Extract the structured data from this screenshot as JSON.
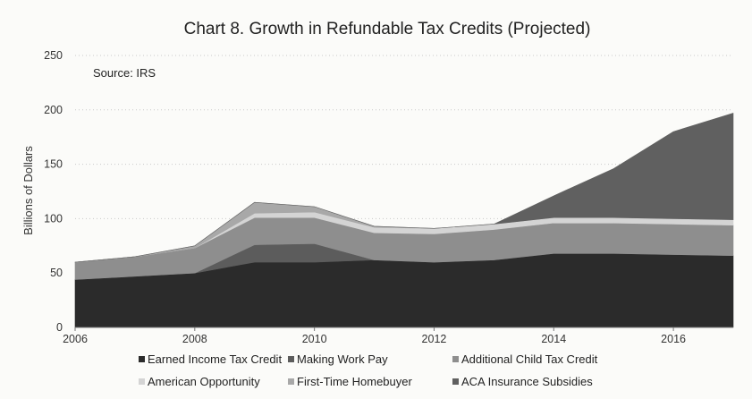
{
  "chart_data": {
    "type": "area",
    "stacked": true,
    "title": "Chart 8. Growth in Refundable Tax Credits (Projected)",
    "annotation": "Source: IRS",
    "xlabel": "",
    "ylabel": "Billions of Dollars",
    "xlim": [
      2006,
      2017
    ],
    "ylim": [
      0,
      250
    ],
    "x": [
      2006,
      2007,
      2008,
      2009,
      2010,
      2011,
      2012,
      2013,
      2014,
      2015,
      2016,
      2017
    ],
    "x_ticks": [
      2006,
      2008,
      2010,
      2012,
      2014,
      2016
    ],
    "y_ticks": [
      0,
      50,
      100,
      150,
      200,
      250
    ],
    "grid": "horizontal-dotted",
    "legend_position": "bottom",
    "series": [
      {
        "name": "Earned Income Tax Credit",
        "color": "#2b2b2b",
        "values": [
          44,
          47,
          50,
          60,
          60,
          62,
          60,
          62,
          68,
          68,
          67,
          66
        ]
      },
      {
        "name": "Making Work Pay",
        "color": "#5c5c5c",
        "values": [
          0,
          0,
          0,
          16,
          17,
          0,
          0,
          0,
          0,
          0,
          0,
          0
        ]
      },
      {
        "name": "Additional Child Tax Credit",
        "color": "#8e8e8e",
        "values": [
          16,
          18,
          23,
          25,
          24,
          25,
          26,
          28,
          28,
          28,
          28,
          28
        ]
      },
      {
        "name": "American Opportunity",
        "color": "#d4d4d4",
        "values": [
          0,
          0,
          0,
          4,
          5,
          5,
          5,
          5,
          5,
          5,
          5,
          5
        ]
      },
      {
        "name": "First-Time Homebuyer",
        "color": "#a8a8a8",
        "values": [
          0,
          0,
          2,
          10,
          5,
          1,
          0,
          0,
          0,
          0,
          0,
          0
        ]
      },
      {
        "name": "ACA Insurance Subsidies",
        "color": "#606060",
        "values": [
          0,
          0,
          0,
          0,
          0,
          0,
          0,
          0,
          20,
          45,
          80,
          98
        ]
      }
    ]
  }
}
